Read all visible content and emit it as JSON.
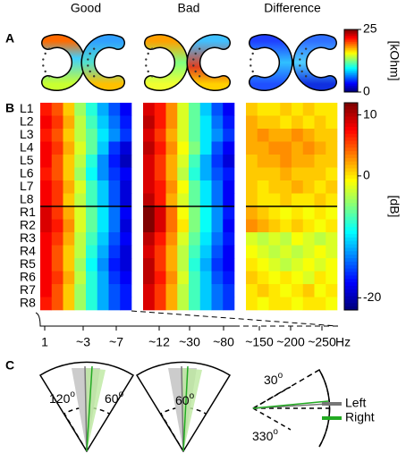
{
  "panel_labels": [
    "A",
    "B",
    "C"
  ],
  "impedance": {
    "colorbar_label": "[kOhm]",
    "clim": [
      0,
      25
    ],
    "ticks": [
      25,
      0
    ]
  },
  "heatmap": {
    "rows": [
      "L1",
      "L2",
      "L3",
      "L4",
      "L5",
      "L6",
      "L7",
      "L8",
      "R1",
      "R2",
      "R3",
      "R4",
      "R5",
      "R6",
      "R7",
      "R8"
    ],
    "clim": [
      -22,
      12
    ],
    "colorbar_label": "[dB]",
    "colorbar_ticks": [
      10,
      0,
      -20
    ],
    "panels": [
      {
        "name": "Good",
        "values": [
          [
            7,
            5,
            1,
            -4,
            -8,
            -12,
            -15,
            -18
          ],
          [
            8,
            6,
            2,
            -3,
            -7,
            -11,
            -14,
            -17
          ],
          [
            7,
            5,
            1,
            -3,
            -6,
            -10,
            -13,
            -16
          ],
          [
            8,
            6,
            2,
            -2,
            -6,
            -11,
            -16,
            -19
          ],
          [
            8,
            5,
            1,
            -3,
            -8,
            -13,
            -17,
            -20
          ],
          [
            7,
            5,
            1,
            -4,
            -9,
            -13,
            -16,
            -18
          ],
          [
            8,
            6,
            2,
            -2,
            -7,
            -11,
            -15,
            -19
          ],
          [
            8,
            6,
            1,
            -3,
            -7,
            -11,
            -15,
            -19
          ],
          [
            9,
            6,
            2,
            -2,
            -6,
            -10,
            -14,
            -18
          ],
          [
            9,
            7,
            3,
            -2,
            -6,
            -10,
            -14,
            -19
          ],
          [
            8,
            6,
            2,
            -3,
            -7,
            -11,
            -15,
            -18
          ],
          [
            8,
            5,
            1,
            -3,
            -8,
            -12,
            -16,
            -19
          ],
          [
            8,
            5,
            1,
            -4,
            -9,
            -13,
            -17,
            -19
          ],
          [
            8,
            6,
            2,
            -3,
            -8,
            -12,
            -16,
            -18
          ],
          [
            8,
            5,
            1,
            -4,
            -8,
            -12,
            -15,
            -17
          ],
          [
            7,
            5,
            1,
            -4,
            -8,
            -12,
            -15,
            -17
          ]
        ]
      },
      {
        "name": "Bad",
        "values": [
          [
            9,
            7,
            3,
            -2,
            -6,
            -11,
            -15,
            -18
          ],
          [
            10,
            7,
            3,
            -2,
            -6,
            -10,
            -14,
            -17
          ],
          [
            9,
            6,
            2,
            -2,
            -6,
            -10,
            -13,
            -16
          ],
          [
            10,
            7,
            3,
            -1,
            -5,
            -10,
            -15,
            -18
          ],
          [
            9,
            6,
            2,
            -2,
            -7,
            -12,
            -16,
            -19
          ],
          [
            9,
            6,
            2,
            -3,
            -8,
            -12,
            -15,
            -17
          ],
          [
            9,
            7,
            3,
            -1,
            -6,
            -10,
            -14,
            -18
          ],
          [
            10,
            7,
            2,
            -2,
            -6,
            -10,
            -14,
            -18
          ],
          [
            12,
            9,
            4,
            -1,
            -5,
            -9,
            -13,
            -17
          ],
          [
            12,
            9,
            4,
            0,
            -5,
            -9,
            -13,
            -18
          ],
          [
            10,
            7,
            3,
            -2,
            -6,
            -10,
            -14,
            -17
          ],
          [
            9,
            6,
            2,
            -3,
            -7,
            -11,
            -15,
            -18
          ],
          [
            10,
            6,
            2,
            -3,
            -8,
            -12,
            -16,
            -18
          ],
          [
            10,
            7,
            3,
            -2,
            -7,
            -11,
            -15,
            -17
          ],
          [
            9,
            6,
            2,
            -3,
            -7,
            -11,
            -14,
            -16
          ],
          [
            9,
            6,
            2,
            -3,
            -7,
            -11,
            -14,
            -16
          ]
        ]
      },
      {
        "name": "Difference",
        "values": [
          [
            1,
            0,
            0,
            1,
            0,
            1,
            0,
            0
          ],
          [
            2,
            1,
            1,
            0,
            1,
            0,
            1,
            0
          ],
          [
            2,
            3,
            2,
            2,
            3,
            2,
            1,
            1
          ],
          [
            2,
            2,
            3,
            3,
            2,
            3,
            2,
            1
          ],
          [
            1,
            2,
            2,
            3,
            2,
            2,
            1,
            1
          ],
          [
            1,
            1,
            1,
            2,
            1,
            1,
            1,
            0
          ],
          [
            1,
            0,
            1,
            1,
            2,
            1,
            0,
            1
          ],
          [
            1,
            0,
            0,
            1,
            0,
            0,
            1,
            0
          ],
          [
            2,
            1,
            0,
            -1,
            0,
            -1,
            0,
            -1
          ],
          [
            3,
            2,
            1,
            0,
            1,
            0,
            -1,
            0
          ],
          [
            -2,
            -3,
            -2,
            -3,
            -1,
            -2,
            -3,
            -2
          ],
          [
            -1,
            -2,
            -3,
            -2,
            -3,
            -2,
            -1,
            -2
          ],
          [
            0,
            -1,
            -2,
            -3,
            -2,
            -1,
            -2,
            -1
          ],
          [
            1,
            0,
            -1,
            0,
            -1,
            -2,
            0,
            -1
          ],
          [
            0,
            1,
            0,
            -1,
            0,
            1,
            -1,
            0
          ],
          [
            0,
            -1,
            0,
            0,
            -1,
            0,
            0,
            -1
          ]
        ]
      }
    ]
  },
  "frequency_axis": {
    "ticks": [
      "1",
      "~3",
      "~7",
      "~12",
      "~30",
      "~80",
      "~150",
      "~200",
      "~250"
    ],
    "unit": "Hz"
  },
  "polar": {
    "angle_labels": [
      "120",
      "60",
      "60",
      "30",
      "330"
    ],
    "degree": "o",
    "legend": [
      {
        "name": "Left",
        "color": "#777777"
      },
      {
        "name": "Right",
        "color": "#22aa22"
      }
    ]
  }
}
